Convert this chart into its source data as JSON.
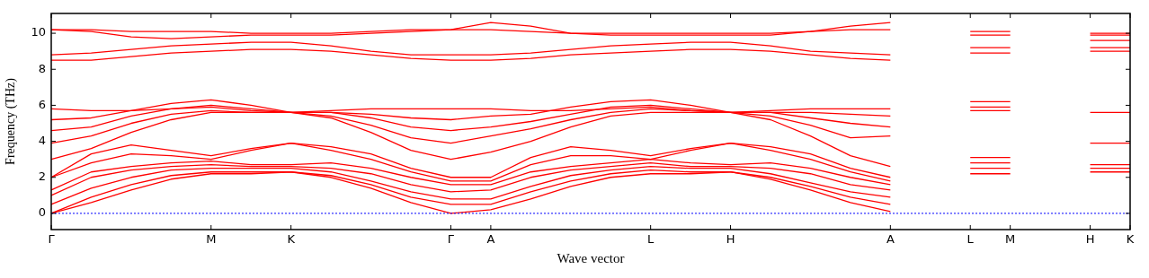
{
  "chart_data": {
    "type": "line",
    "ylabel": "Frequency (THz)",
    "xlabel": "Wave vector",
    "categories": [
      "Γ",
      null,
      null,
      null,
      "M",
      null,
      "K",
      null,
      null,
      null,
      "Γ",
      "A",
      null,
      null,
      null,
      "L",
      null,
      "H",
      null,
      null,
      null,
      "A",
      null,
      "L",
      "M",
      null,
      "H",
      "K"
    ],
    "ylim": [
      -0.9,
      11.1
    ],
    "yticks": [
      0,
      2,
      4,
      6,
      8,
      10
    ],
    "grid": false,
    "legend": false,
    "marker": "none",
    "line_style": "solid",
    "ref_lines": [
      {
        "axis": "y",
        "value": 0,
        "color": "#0000ff",
        "line_style": "dotted"
      }
    ],
    "series": [
      {
        "color": "#ff0000",
        "values": [
          0,
          0.6,
          1.3,
          1.9,
          2.2,
          2.2,
          2.3,
          2.0,
          1.4,
          0.6,
          0,
          0.2,
          0.8,
          1.5,
          2.0,
          2.2,
          2.2,
          2.3,
          1.9,
          1.3,
          0.6,
          0.1,
          null,
          null,
          null,
          null,
          null,
          null
        ]
      },
      {
        "color": "#ff0000",
        "values": [
          0,
          0.9,
          1.6,
          2.1,
          2.3,
          2.3,
          2.3,
          2.1,
          1.6,
          0.9,
          0.5,
          0.5,
          1.2,
          1.8,
          2.2,
          2.4,
          2.3,
          2.3,
          2.0,
          1.5,
          0.9,
          0.5,
          null,
          null,
          null,
          null,
          null,
          null
        ]
      },
      {
        "color": "#ff0000",
        "values": [
          0.5,
          1.4,
          2.0,
          2.4,
          2.5,
          2.5,
          2.5,
          2.3,
          1.8,
          1.2,
          0.8,
          0.8,
          1.5,
          2.1,
          2.4,
          2.6,
          2.5,
          2.5,
          2.2,
          1.7,
          1.2,
          0.9,
          null,
          null,
          null,
          null,
          null,
          null
        ]
      },
      {
        "color": "#ff0000",
        "values": [
          1.0,
          2.0,
          2.4,
          2.6,
          2.7,
          2.6,
          2.6,
          2.5,
          2.2,
          1.6,
          1.2,
          1.3,
          2.0,
          2.4,
          2.6,
          2.8,
          2.6,
          2.6,
          2.5,
          2.2,
          1.6,
          1.3,
          null,
          null,
          null,
          null,
          null,
          null
        ]
      },
      {
        "color": "#ff0000",
        "values": [
          1.3,
          2.3,
          2.6,
          2.8,
          2.9,
          2.7,
          2.7,
          2.8,
          2.5,
          2.0,
          1.6,
          1.6,
          2.3,
          2.6,
          2.8,
          3.0,
          2.8,
          2.7,
          2.8,
          2.5,
          2.0,
          1.6,
          null,
          null,
          null,
          null,
          null,
          null
        ]
      },
      {
        "color": "#ff0000",
        "values": [
          2.0,
          2.8,
          3.3,
          3.2,
          3.0,
          3.5,
          3.9,
          3.5,
          3.0,
          2.3,
          1.8,
          1.8,
          2.7,
          3.2,
          3.2,
          3.0,
          3.5,
          3.9,
          3.5,
          3.0,
          2.3,
          1.8,
          null,
          null,
          null,
          null,
          null,
          null
        ]
      },
      {
        "color": "#ff0000",
        "values": [
          2.0,
          3.3,
          3.8,
          3.5,
          3.2,
          3.6,
          3.9,
          3.7,
          3.3,
          2.5,
          2.0,
          2.0,
          3.1,
          3.7,
          3.5,
          3.2,
          3.6,
          3.9,
          3.7,
          3.3,
          2.5,
          2.0,
          null,
          null,
          null,
          null,
          null,
          null
        ]
      },
      {
        "color": "#ff0000",
        "values": [
          3.0,
          3.6,
          4.5,
          5.2,
          5.6,
          5.6,
          5.6,
          5.3,
          4.5,
          3.5,
          3.0,
          3.4,
          4.0,
          4.8,
          5.4,
          5.6,
          5.6,
          5.6,
          5.2,
          4.3,
          3.2,
          2.6,
          null,
          null,
          null,
          null,
          null,
          null
        ]
      },
      {
        "color": "#ff0000",
        "values": [
          3.9,
          4.3,
          5.0,
          5.5,
          5.7,
          5.6,
          5.6,
          5.4,
          4.9,
          4.2,
          3.9,
          4.3,
          4.7,
          5.2,
          5.6,
          5.8,
          5.7,
          5.6,
          5.4,
          4.9,
          4.2,
          4.3,
          null,
          null,
          null,
          null,
          null,
          null
        ]
      },
      {
        "color": "#ff0000",
        "values": [
          4.6,
          4.8,
          5.4,
          5.8,
          6.0,
          5.8,
          5.6,
          5.6,
          5.3,
          4.8,
          4.6,
          4.8,
          5.1,
          5.5,
          5.9,
          6.0,
          5.8,
          5.6,
          5.6,
          5.3,
          5.0,
          4.8,
          null,
          null,
          null,
          null,
          null,
          null
        ]
      },
      {
        "color": "#ff0000",
        "values": [
          5.2,
          5.3,
          5.7,
          6.1,
          6.3,
          6.0,
          5.6,
          5.6,
          5.5,
          5.3,
          5.2,
          5.4,
          5.5,
          5.9,
          6.2,
          6.3,
          6.0,
          5.6,
          5.6,
          5.6,
          5.5,
          5.4,
          null,
          null,
          null,
          null,
          null,
          null
        ]
      },
      {
        "color": "#ff0000",
        "values": [
          5.8,
          5.7,
          5.7,
          5.8,
          5.9,
          5.7,
          5.6,
          5.7,
          5.8,
          5.8,
          5.8,
          5.8,
          5.7,
          5.7,
          5.8,
          5.9,
          5.7,
          5.6,
          5.7,
          5.8,
          5.8,
          5.8,
          null,
          null,
          null,
          null,
          null,
          null
        ]
      },
      {
        "color": "#ff0000",
        "values": [
          8.5,
          8.5,
          8.7,
          8.9,
          9.0,
          9.1,
          9.1,
          9.0,
          8.8,
          8.6,
          8.5,
          8.5,
          8.6,
          8.8,
          8.9,
          9.0,
          9.1,
          9.1,
          9.0,
          8.8,
          8.6,
          8.5,
          null,
          null,
          null,
          null,
          null,
          null
        ]
      },
      {
        "color": "#ff0000",
        "values": [
          8.8,
          8.9,
          9.1,
          9.3,
          9.4,
          9.5,
          9.5,
          9.3,
          9.0,
          8.8,
          8.8,
          8.8,
          8.9,
          9.1,
          9.3,
          9.4,
          9.5,
          9.5,
          9.3,
          9.0,
          8.9,
          8.8,
          null,
          null,
          null,
          null,
          null,
          null
        ]
      },
      {
        "color": "#ff0000",
        "values": [
          10.2,
          10.1,
          9.8,
          9.7,
          9.8,
          9.9,
          9.9,
          9.9,
          10.0,
          10.1,
          10.2,
          10.6,
          10.4,
          10.0,
          9.9,
          9.9,
          9.9,
          9.9,
          9.9,
          10.1,
          10.4,
          10.6,
          null,
          null,
          null,
          null,
          null,
          null
        ]
      },
      {
        "color": "#ff0000",
        "values": [
          10.2,
          10.2,
          10.1,
          10.1,
          10.1,
          10.0,
          10.0,
          10.0,
          10.1,
          10.2,
          10.2,
          10.2,
          10.1,
          10.0,
          10.0,
          10.0,
          10.0,
          10.0,
          10.0,
          10.1,
          10.2,
          10.2,
          null,
          null,
          null,
          null,
          null,
          null
        ]
      },
      {
        "color": "#ff0000",
        "values": [
          null,
          null,
          null,
          null,
          null,
          null,
          null,
          null,
          null,
          null,
          null,
          null,
          null,
          null,
          null,
          null,
          null,
          null,
          null,
          null,
          null,
          null,
          null,
          2.2,
          2.2,
          null,
          2.3,
          2.3
        ]
      },
      {
        "color": "#ff0000",
        "values": [
          null,
          null,
          null,
          null,
          null,
          null,
          null,
          null,
          null,
          null,
          null,
          null,
          null,
          null,
          null,
          null,
          null,
          null,
          null,
          null,
          null,
          null,
          null,
          2.5,
          2.5,
          null,
          2.5,
          2.5
        ]
      },
      {
        "color": "#ff0000",
        "values": [
          null,
          null,
          null,
          null,
          null,
          null,
          null,
          null,
          null,
          null,
          null,
          null,
          null,
          null,
          null,
          null,
          null,
          null,
          null,
          null,
          null,
          null,
          null,
          2.8,
          2.8,
          null,
          2.7,
          2.7
        ]
      },
      {
        "color": "#ff0000",
        "values": [
          null,
          null,
          null,
          null,
          null,
          null,
          null,
          null,
          null,
          null,
          null,
          null,
          null,
          null,
          null,
          null,
          null,
          null,
          null,
          null,
          null,
          null,
          null,
          3.1,
          3.1,
          null,
          3.9,
          3.9
        ]
      },
      {
        "color": "#ff0000",
        "values": [
          null,
          null,
          null,
          null,
          null,
          null,
          null,
          null,
          null,
          null,
          null,
          null,
          null,
          null,
          null,
          null,
          null,
          null,
          null,
          null,
          null,
          null,
          null,
          5.7,
          5.7,
          null,
          5.6,
          5.6
        ]
      },
      {
        "color": "#ff0000",
        "values": [
          null,
          null,
          null,
          null,
          null,
          null,
          null,
          null,
          null,
          null,
          null,
          null,
          null,
          null,
          null,
          null,
          null,
          null,
          null,
          null,
          null,
          null,
          null,
          5.9,
          5.9,
          null,
          9.0,
          9.0
        ]
      },
      {
        "color": "#ff0000",
        "values": [
          null,
          null,
          null,
          null,
          null,
          null,
          null,
          null,
          null,
          null,
          null,
          null,
          null,
          null,
          null,
          null,
          null,
          null,
          null,
          null,
          null,
          null,
          null,
          6.2,
          6.2,
          null,
          9.2,
          9.2
        ]
      },
      {
        "color": "#ff0000",
        "values": [
          null,
          null,
          null,
          null,
          null,
          null,
          null,
          null,
          null,
          null,
          null,
          null,
          null,
          null,
          null,
          null,
          null,
          null,
          null,
          null,
          null,
          null,
          null,
          8.9,
          8.9,
          null,
          9.6,
          9.6
        ]
      },
      {
        "color": "#ff0000",
        "values": [
          null,
          null,
          null,
          null,
          null,
          null,
          null,
          null,
          null,
          null,
          null,
          null,
          null,
          null,
          null,
          null,
          null,
          null,
          null,
          null,
          null,
          null,
          null,
          9.2,
          9.2,
          null,
          9.9,
          9.9
        ]
      },
      {
        "color": "#ff0000",
        "values": [
          null,
          null,
          null,
          null,
          null,
          null,
          null,
          null,
          null,
          null,
          null,
          null,
          null,
          null,
          null,
          null,
          null,
          null,
          null,
          null,
          null,
          null,
          null,
          9.9,
          9.9,
          null,
          10.0,
          10.0
        ]
      },
      {
        "color": "#ff0000",
        "values": [
          null,
          null,
          null,
          null,
          null,
          null,
          null,
          null,
          null,
          null,
          null,
          null,
          null,
          null,
          null,
          null,
          null,
          null,
          null,
          null,
          null,
          null,
          null,
          10.1,
          10.1,
          null,
          null,
          null
        ]
      }
    ]
  }
}
